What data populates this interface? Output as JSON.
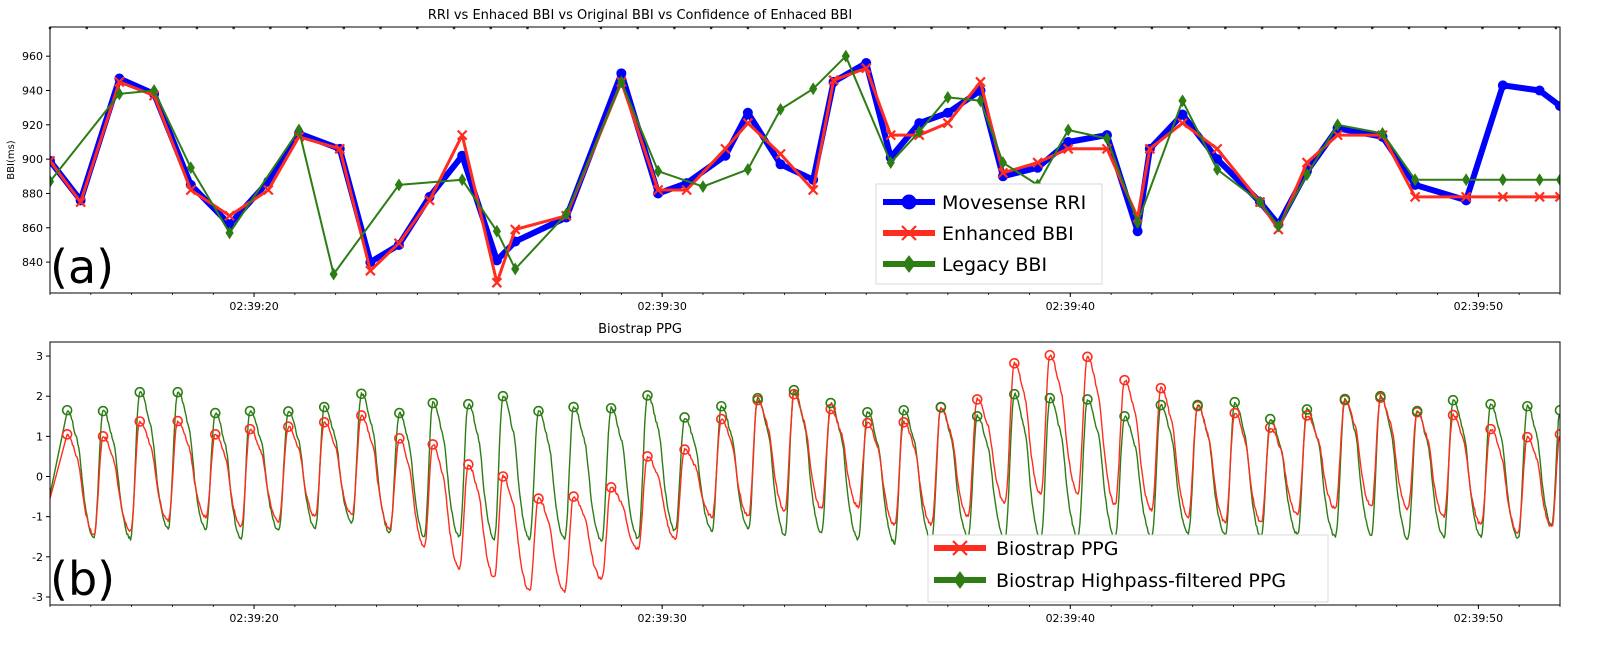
{
  "chart_data": [
    {
      "type": "line",
      "title": "RRI vs Enhaced BBI vs Original BBI vs Confidence of Enhaced BBI",
      "panel_label": "(a)",
      "ylabel": "BBI(ms)",
      "xlabel": "",
      "x_unit": "seconds after 02:39:15",
      "xlim": [
        0,
        37
      ],
      "ylim": [
        822,
        977
      ],
      "yticks": [
        840,
        860,
        880,
        900,
        920,
        940,
        960
      ],
      "xticks": [
        {
          "x": 5,
          "label": "02:39:20"
        },
        {
          "x": 15,
          "label": "02:39:30"
        },
        {
          "x": 25,
          "label": "02:39:40"
        },
        {
          "x": 35,
          "label": "02:39:50"
        }
      ],
      "legend_position": "center-right",
      "series": [
        {
          "name": "Movesense RRI",
          "color": "#0000ff",
          "marker": "circle",
          "x": [
            0,
            0.75,
            1.7,
            2.55,
            3.45,
            4.4,
            5.35,
            6.1,
            7.1,
            7.85,
            8.55,
            9.3,
            10.1,
            10.95,
            11.4,
            12.65,
            14.0,
            14.9,
            15.6,
            16.55,
            17.1,
            17.9,
            18.7,
            19.2,
            20.0,
            20.6,
            21.3,
            22.0,
            22.8,
            23.35,
            24.2,
            24.95,
            25.9,
            26.65,
            26.95,
            27.75,
            28.6,
            29.65,
            30.1,
            30.8,
            31.55,
            32.65,
            33.45,
            34.7,
            35.6,
            36.5,
            37.0
          ],
          "y": [
            899,
            876,
            947,
            938,
            885,
            862,
            887,
            915,
            906,
            840,
            850,
            878,
            902,
            841,
            852,
            866,
            950,
            880,
            886,
            902,
            927,
            897,
            888,
            945,
            956,
            901,
            921,
            927,
            940,
            890,
            895,
            910,
            914,
            858,
            906,
            926,
            900,
            875,
            862,
            893,
            918,
            913,
            885,
            876,
            943,
            940,
            931
          ],
          "note": "trailing points beyond axis clipped"
        },
        {
          "name": "Enhanced BBI",
          "color": "#ff2d1f",
          "marker": "x",
          "x": [
            0,
            0.75,
            1.7,
            2.55,
            3.45,
            4.4,
            5.35,
            6.1,
            7.1,
            7.85,
            8.55,
            9.3,
            10.1,
            10.95,
            11.4,
            12.65,
            14.0,
            14.9,
            15.6,
            16.55,
            17.1,
            17.9,
            18.7,
            19.2,
            20.0,
            20.6,
            21.3,
            22.0,
            22.8,
            23.35,
            24.2,
            24.95,
            25.9,
            26.65,
            26.95,
            27.75,
            28.6,
            29.65,
            30.1,
            30.8,
            31.55,
            32.65,
            33.45,
            34.7,
            35.6,
            36.5,
            37.0
          ],
          "y": [
            899,
            875,
            945,
            937,
            882,
            867,
            882,
            913,
            906,
            835,
            851,
            876,
            914,
            828,
            859,
            867,
            945,
            882,
            882,
            906,
            921,
            903,
            882,
            946,
            953,
            914,
            914,
            921,
            945,
            892,
            898,
            906,
            906,
            866,
            906,
            921,
            906,
            875,
            859,
            898,
            914,
            914,
            878,
            878,
            878,
            878,
            878
          ]
        },
        {
          "name": "Legacy   BBI",
          "color": "#2d7d14",
          "marker": "diamond",
          "x": [
            0,
            1.7,
            2.55,
            3.45,
            4.4,
            6.1,
            6.95,
            8.55,
            10.1,
            10.95,
            11.4,
            12.65,
            14.0,
            14.9,
            16.0,
            17.1,
            17.9,
            18.7,
            19.5,
            20.6,
            21.3,
            22.0,
            22.8,
            23.35,
            24.2,
            24.95,
            25.9,
            26.65,
            27.75,
            28.6,
            29.65,
            30.1,
            30.8,
            31.55,
            32.65,
            33.45,
            34.7,
            35.6,
            36.5,
            37.0
          ],
          "y": [
            887,
            938,
            940,
            895,
            857,
            917,
            833,
            885,
            888,
            858,
            836,
            868,
            945,
            893,
            884,
            894,
            929,
            941,
            960,
            898,
            916,
            936,
            934,
            898,
            885,
            917,
            912,
            863,
            934,
            894,
            875,
            861,
            891,
            920,
            915,
            888,
            888,
            888,
            888,
            888
          ]
        }
      ]
    },
    {
      "type": "line",
      "title": "Biostrap PPG",
      "panel_label": "(b)",
      "xlabel": "",
      "ylabel": "",
      "x_unit": "seconds after 02:39:15",
      "xlim": [
        0,
        37
      ],
      "ylim": [
        -3.2,
        3.35
      ],
      "yticks": [
        -3,
        -2,
        -1,
        0,
        1,
        2,
        3
      ],
      "xticks": [
        {
          "x": 5,
          "label": "02:39:20"
        },
        {
          "x": 15,
          "label": "02:39:30"
        },
        {
          "x": 25,
          "label": "02:39:40"
        },
        {
          "x": 35,
          "label": "02:39:50"
        }
      ],
      "legend_position": "lower-center",
      "series": [
        {
          "name": "Biostrap PPG",
          "color": "#ff2d1f",
          "marker": "circle-open",
          "peak_times": [
            0.42,
            1.3,
            2.2,
            3.13,
            4.05,
            4.9,
            5.84,
            6.72,
            7.63,
            8.56,
            9.38,
            10.25,
            11.1,
            11.97,
            12.83,
            13.75,
            14.64,
            15.55,
            16.45,
            17.34,
            18.23,
            19.13,
            20.03,
            20.92,
            21.83,
            22.72,
            23.63,
            24.5,
            25.42,
            26.33,
            27.22,
            28.12,
            29.03,
            29.9,
            30.8,
            31.73,
            32.6,
            33.5,
            34.38,
            35.3,
            36.2,
            37.0
          ],
          "peak_values": [
            1.05,
            1.0,
            1.37,
            1.38,
            1.05,
            1.18,
            1.24,
            1.35,
            1.52,
            0.95,
            0.8,
            0.3,
            0.0,
            -0.55,
            -0.5,
            -0.27,
            0.5,
            0.67,
            1.43,
            1.9,
            2.05,
            1.68,
            1.33,
            1.35,
            1.72,
            1.92,
            2.82,
            3.02,
            2.98,
            2.4,
            2.2,
            1.75,
            1.58,
            1.22,
            1.52,
            1.9,
            1.96,
            1.6,
            1.53,
            1.18,
            0.98,
            1.05
          ],
          "trough_values": [
            -0.55,
            -1.45,
            -1.35,
            -1.1,
            -1.0,
            -1.25,
            -1.1,
            -1.0,
            -0.95,
            -1.3,
            -1.75,
            -2.3,
            -2.5,
            -2.85,
            -2.85,
            -2.55,
            -1.8,
            -1.55,
            -1.0,
            -1.0,
            -0.85,
            -0.8,
            -0.75,
            -1.2,
            -1.2,
            -1.0,
            -0.65,
            -0.45,
            -0.4,
            -0.7,
            -0.85,
            -1.0,
            -1.15,
            -1.15,
            -0.95,
            -0.8,
            -0.75,
            -0.8,
            -1.0,
            -1.2,
            -1.4,
            -1.25
          ]
        },
        {
          "name": "Biostrap Highpass-filtered PPG",
          "color": "#2d7d14",
          "marker": "circle-open",
          "peak_times": [
            0.42,
            1.3,
            2.2,
            3.13,
            4.05,
            4.9,
            5.84,
            6.72,
            7.63,
            8.56,
            9.38,
            10.25,
            11.1,
            11.97,
            12.83,
            13.75,
            14.64,
            15.55,
            16.45,
            17.34,
            18.23,
            19.13,
            20.03,
            20.92,
            21.83,
            22.72,
            23.63,
            24.5,
            25.42,
            26.33,
            27.22,
            28.12,
            29.03,
            29.9,
            30.8,
            31.73,
            32.6,
            33.5,
            34.38,
            35.3,
            36.2,
            37.0
          ],
          "peak_values": [
            1.65,
            1.63,
            2.1,
            2.1,
            1.58,
            1.63,
            1.62,
            1.73,
            2.06,
            1.58,
            1.83,
            1.8,
            2.0,
            1.63,
            1.73,
            1.7,
            2.02,
            1.47,
            1.75,
            1.95,
            2.15,
            1.83,
            1.6,
            1.65,
            1.73,
            1.5,
            2.05,
            1.95,
            1.92,
            1.5,
            1.78,
            1.78,
            1.85,
            1.43,
            1.67,
            1.93,
            2.0,
            1.63,
            1.9,
            1.8,
            1.75,
            1.65
          ],
          "trough_values": [
            -0.45,
            -1.5,
            -1.55,
            -1.3,
            -1.3,
            -1.55,
            -1.35,
            -1.3,
            -1.15,
            -1.4,
            -1.5,
            -1.5,
            -1.55,
            -1.55,
            -1.55,
            -1.6,
            -1.55,
            -1.35,
            -1.35,
            -1.3,
            -1.45,
            -1.4,
            -1.55,
            -1.65,
            -1.6,
            -1.5,
            -1.55,
            -1.55,
            -1.5,
            -1.5,
            -1.5,
            -1.4,
            -1.45,
            -1.5,
            -1.45,
            -1.5,
            -1.45,
            -1.55,
            -1.5,
            -1.5,
            -1.55,
            -1.2
          ]
        }
      ]
    }
  ]
}
